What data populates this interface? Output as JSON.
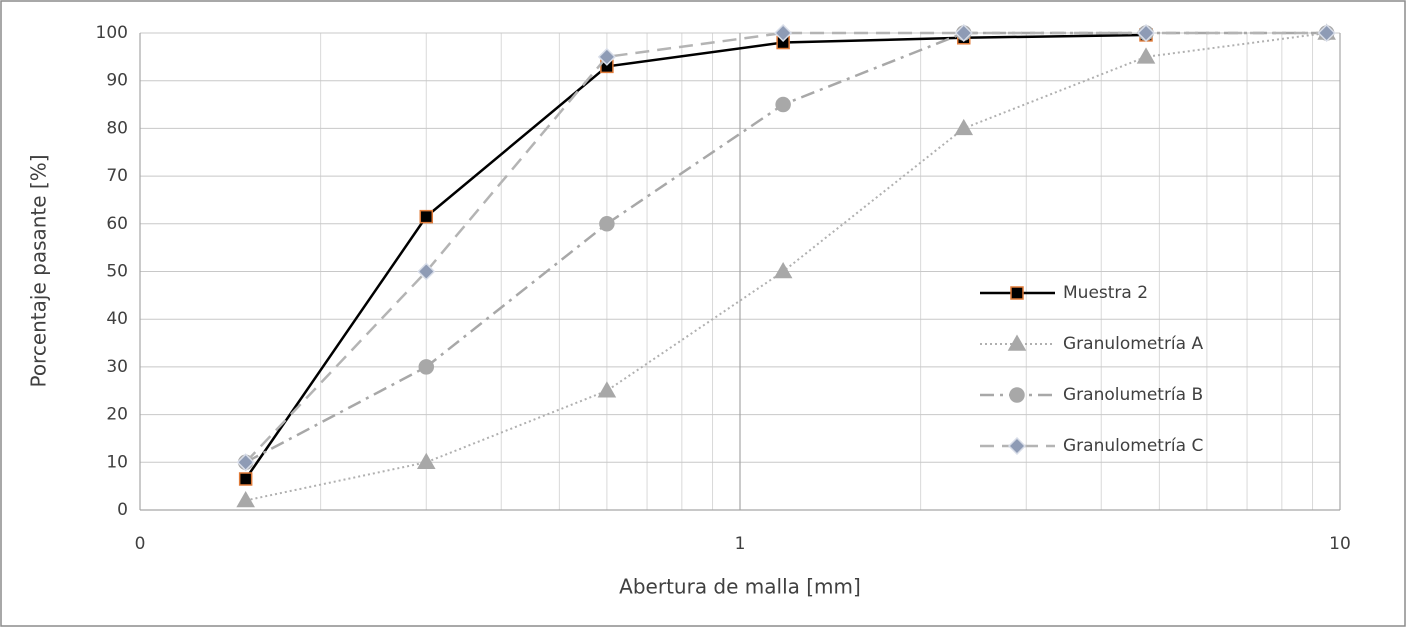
{
  "chart_data": {
    "type": "line",
    "x_label": "Abertura de malla [mm]",
    "y_label": "Porcentaje pasante [%]",
    "x": [
      0.15,
      0.3,
      0.6,
      1.18,
      2.36,
      4.75,
      9.5
    ],
    "x_log": true,
    "xlim": [
      0.1,
      10
    ],
    "xticks": [
      {
        "value": 0.1,
        "label": "0"
      },
      1,
      10
    ],
    "ylim": [
      0,
      100
    ],
    "yticks": [
      0,
      10,
      20,
      30,
      40,
      50,
      60,
      70,
      80,
      90,
      100
    ],
    "grid": true,
    "minor_grid": true,
    "legend": "right",
    "series": [
      {
        "name": "Muestra 2",
        "color": "#000000",
        "line_style": "solid",
        "marker": "square",
        "marker_color": "#000000",
        "marker_edge": "#e07b39",
        "values": [
          6.5,
          61.5,
          93,
          98,
          99,
          99.6,
          null
        ]
      },
      {
        "name": "Granulometría A",
        "color": "#b0b0b0",
        "line_style": "dotted",
        "marker": "triangle",
        "marker_color": "#a8a8a8",
        "marker_edge": "#a8a8a8",
        "values": [
          2,
          10,
          25,
          50,
          80,
          95,
          100
        ]
      },
      {
        "name": "Granolumetría B",
        "color": "#a8a8a8",
        "line_style": "dashdot",
        "marker": "circle",
        "marker_color": "#a8a8a8",
        "marker_edge": "#a8a8a8",
        "values": [
          10,
          30,
          60,
          85,
          100,
          100,
          100
        ]
      },
      {
        "name": "Granulometría C",
        "color": "#b4b4b4",
        "line_style": "dashed",
        "marker": "diamond",
        "marker_color": "#8e9bb5",
        "marker_edge": "#d8dde8",
        "values": [
          10,
          50,
          95,
          100,
          100,
          100,
          100
        ]
      }
    ]
  }
}
